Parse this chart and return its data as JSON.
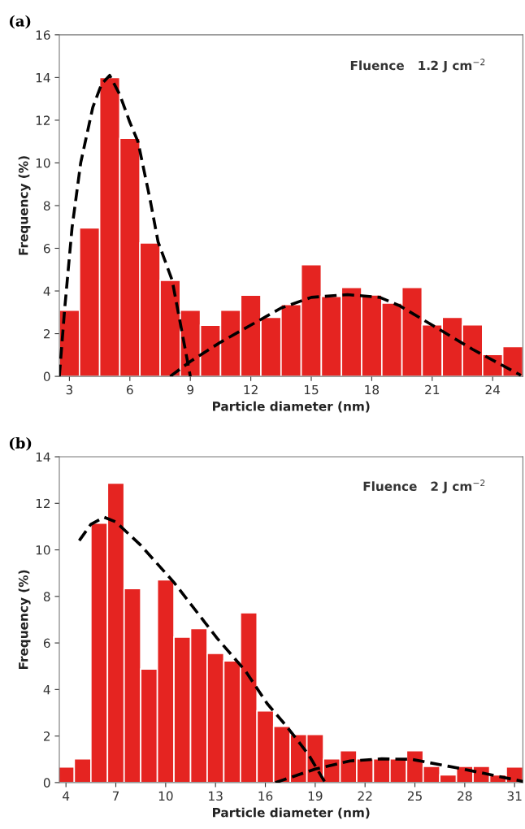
{
  "chart_data": [
    {
      "type": "histogram",
      "title": "(a)",
      "xlabel": "Particle diameter (nm)",
      "ylabel": "Frequency (%)",
      "annotations": [
        "Fluence   1.2 J cm$^{−2}$"
      ],
      "bins": [
        2.5,
        3.5,
        4.5,
        5.5,
        6.5,
        7.5,
        8.5,
        9.5,
        10.5,
        11.5,
        12.5,
        13.5,
        14.5,
        15.5,
        16.5,
        17.5,
        18.5,
        19.5,
        20.5,
        21.5,
        22.5,
        23.5,
        24.5,
        25.5
      ],
      "values": [
        3.1,
        6.95,
        14,
        11.15,
        6.25,
        4.5,
        3.1,
        2.4,
        3.1,
        3.8,
        2.77,
        3.37,
        5.23,
        3.75,
        4.17,
        3.81,
        3.43,
        4.17,
        2.41,
        2.77,
        2.41,
        1.02,
        1.4
      ],
      "color": "#e52421",
      "series": [
        {
          "type": "line",
          "color": "#000000",
          "line_style": "dashed",
          "x": [
            2.5,
            2.76,
            3.13,
            3.56,
            4.16,
            4.6,
            5,
            5.5,
            6,
            6.4,
            7,
            7.4,
            8.1,
            8.5,
            9
          ],
          "values": [
            0,
            3.1,
            6.95,
            10,
            12.6,
            13.7,
            14.1,
            13.2,
            11.9,
            11,
            8.3,
            6.3,
            4.5,
            2.5,
            0
          ]
        },
        {
          "type": "line",
          "color": "#000000",
          "line_style": "dashed",
          "x": [
            8,
            9,
            10.5,
            12,
            13.5,
            15,
            16.8,
            18.4,
            19.4,
            21,
            23,
            25.4
          ],
          "values": [
            0,
            0.7,
            1.6,
            2.4,
            3.2,
            3.7,
            3.83,
            3.7,
            3.3,
            2.4,
            1.27,
            0.05
          ]
        }
      ],
      "xlim": [
        2.5,
        25.5
      ],
      "xticks": [
        3,
        6,
        9,
        12,
        15,
        18,
        21,
        24
      ],
      "ylim": [
        0,
        16
      ],
      "yticks": [
        0,
        2,
        4,
        6,
        8,
        10,
        12,
        14,
        16
      ],
      "grid": false,
      "legend": false
    },
    {
      "type": "histogram",
      "title": "(b)",
      "xlabel": "Particle diameter (nm)",
      "ylabel": "Frequency (%)",
      "annotations": [
        "Fluence   2 J cm$^{−2}$"
      ],
      "bins": [
        3.5,
        4.5,
        5.5,
        6.5,
        7.5,
        8.5,
        9.5,
        10.5,
        11.5,
        12.5,
        13.5,
        14.5,
        15.5,
        16.5,
        17.5,
        18.5,
        19.5,
        20.5,
        21.5,
        22.5,
        23.5,
        24.5,
        25.5,
        26.5,
        27.5,
        28.5,
        29.5,
        30.5,
        31.5
      ],
      "values": [
        0.67,
        1.02,
        11.15,
        12.87,
        8.34,
        4.88,
        8.71,
        6.25,
        6.62,
        5.55,
        5.23,
        7.3,
        3.08,
        2.42,
        2.07,
        2.07,
        1.02,
        1.37,
        1.02,
        1.02,
        1.02,
        1.37,
        0.7,
        0.33,
        0.7,
        0.7,
        0.33,
        0.67
      ],
      "color": "#e52421",
      "series": [
        {
          "type": "line",
          "color": "#000000",
          "line_style": "dashed",
          "x": [
            4.8,
            5.5,
            6.3,
            7,
            8.5,
            10.5,
            13.1,
            14.8,
            16.1,
            17.3,
            18.6,
            19.6
          ],
          "values": [
            10.4,
            11.1,
            11.4,
            11.2,
            10.2,
            8.6,
            6.2,
            4.8,
            3.4,
            2.4,
            1.2,
            0
          ]
        },
        {
          "type": "line",
          "color": "#000000",
          "line_style": "dashed",
          "x": [
            16.6,
            19,
            21.1,
            23,
            24.8,
            27.9,
            31.5
          ],
          "values": [
            0,
            0.58,
            0.93,
            1.02,
            1.0,
            0.58,
            0.05
          ]
        }
      ],
      "xlim": [
        3.6,
        31.5
      ],
      "xticks": [
        4,
        7,
        10,
        13,
        16,
        19,
        22,
        25,
        28,
        31
      ],
      "ylim": [
        0,
        14
      ],
      "yticks": [
        0,
        2,
        4,
        6,
        8,
        10,
        12,
        14
      ],
      "grid": false,
      "legend": false
    }
  ]
}
